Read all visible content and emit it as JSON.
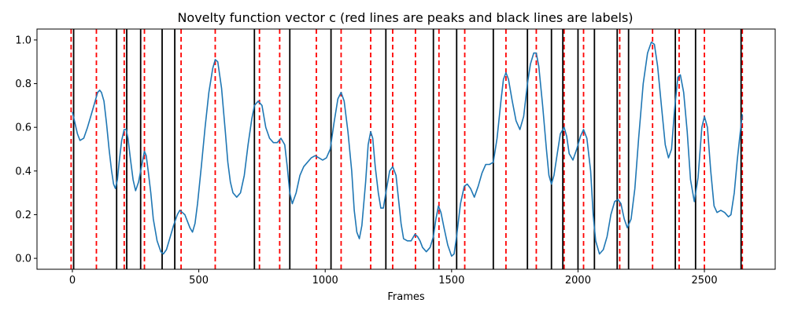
{
  "chart_data": {
    "type": "line",
    "title": "Novelty function vector c (red lines are peaks and black lines are labels)",
    "xlabel": "Frames",
    "ylabel": "",
    "xlim": [
      -140,
      2780
    ],
    "ylim": [
      -0.05,
      1.05
    ],
    "xticks": [
      0,
      500,
      1000,
      1500,
      2000,
      2500
    ],
    "yticks": [
      0.0,
      0.2,
      0.4,
      0.6,
      0.8,
      1.0
    ],
    "grid": false,
    "series": [
      {
        "color": "#1f77b4",
        "points": [
          [
            0,
            0.67
          ],
          [
            10,
            0.62
          ],
          [
            20,
            0.57
          ],
          [
            30,
            0.54
          ],
          [
            45,
            0.55
          ],
          [
            60,
            0.6
          ],
          [
            75,
            0.66
          ],
          [
            90,
            0.72
          ],
          [
            100,
            0.76
          ],
          [
            108,
            0.77
          ],
          [
            115,
            0.76
          ],
          [
            125,
            0.72
          ],
          [
            135,
            0.62
          ],
          [
            145,
            0.5
          ],
          [
            155,
            0.4
          ],
          [
            163,
            0.34
          ],
          [
            170,
            0.32
          ],
          [
            178,
            0.36
          ],
          [
            185,
            0.44
          ],
          [
            195,
            0.54
          ],
          [
            205,
            0.59
          ],
          [
            213,
            0.59
          ],
          [
            220,
            0.55
          ],
          [
            230,
            0.45
          ],
          [
            240,
            0.36
          ],
          [
            250,
            0.31
          ],
          [
            262,
            0.35
          ],
          [
            275,
            0.43
          ],
          [
            285,
            0.49
          ],
          [
            292,
            0.47
          ],
          [
            300,
            0.4
          ],
          [
            310,
            0.3
          ],
          [
            320,
            0.18
          ],
          [
            335,
            0.08
          ],
          [
            350,
            0.03
          ],
          [
            360,
            0.02
          ],
          [
            372,
            0.04
          ],
          [
            385,
            0.09
          ],
          [
            400,
            0.15
          ],
          [
            415,
            0.2
          ],
          [
            425,
            0.22
          ],
          [
            435,
            0.21
          ],
          [
            445,
            0.2
          ],
          [
            455,
            0.17
          ],
          [
            465,
            0.14
          ],
          [
            475,
            0.12
          ],
          [
            485,
            0.16
          ],
          [
            495,
            0.25
          ],
          [
            510,
            0.42
          ],
          [
            525,
            0.6
          ],
          [
            540,
            0.76
          ],
          [
            555,
            0.87
          ],
          [
            565,
            0.91
          ],
          [
            575,
            0.9
          ],
          [
            590,
            0.78
          ],
          [
            605,
            0.58
          ],
          [
            615,
            0.44
          ],
          [
            625,
            0.35
          ],
          [
            635,
            0.3
          ],
          [
            650,
            0.28
          ],
          [
            665,
            0.3
          ],
          [
            680,
            0.38
          ],
          [
            695,
            0.52
          ],
          [
            710,
            0.64
          ],
          [
            720,
            0.7
          ],
          [
            735,
            0.72
          ],
          [
            750,
            0.7
          ],
          [
            765,
            0.6
          ],
          [
            780,
            0.55
          ],
          [
            795,
            0.53
          ],
          [
            810,
            0.53
          ],
          [
            825,
            0.55
          ],
          [
            840,
            0.52
          ],
          [
            850,
            0.42
          ],
          [
            860,
            0.3
          ],
          [
            870,
            0.25
          ],
          [
            885,
            0.3
          ],
          [
            900,
            0.38
          ],
          [
            915,
            0.42
          ],
          [
            930,
            0.44
          ],
          [
            945,
            0.46
          ],
          [
            960,
            0.47
          ],
          [
            975,
            0.46
          ],
          [
            990,
            0.45
          ],
          [
            1005,
            0.46
          ],
          [
            1020,
            0.5
          ],
          [
            1035,
            0.62
          ],
          [
            1050,
            0.73
          ],
          [
            1063,
            0.76
          ],
          [
            1075,
            0.72
          ],
          [
            1090,
            0.58
          ],
          [
            1105,
            0.4
          ],
          [
            1115,
            0.22
          ],
          [
            1125,
            0.12
          ],
          [
            1135,
            0.09
          ],
          [
            1145,
            0.15
          ],
          [
            1160,
            0.35
          ],
          [
            1170,
            0.52
          ],
          [
            1180,
            0.58
          ],
          [
            1188,
            0.55
          ],
          [
            1198,
            0.42
          ],
          [
            1210,
            0.3
          ],
          [
            1220,
            0.23
          ],
          [
            1230,
            0.23
          ],
          [
            1240,
            0.3
          ],
          [
            1255,
            0.4
          ],
          [
            1267,
            0.42
          ],
          [
            1280,
            0.38
          ],
          [
            1290,
            0.27
          ],
          [
            1300,
            0.16
          ],
          [
            1310,
            0.09
          ],
          [
            1325,
            0.08
          ],
          [
            1340,
            0.08
          ],
          [
            1355,
            0.11
          ],
          [
            1365,
            0.1
          ],
          [
            1375,
            0.08
          ],
          [
            1385,
            0.05
          ],
          [
            1400,
            0.03
          ],
          [
            1415,
            0.05
          ],
          [
            1428,
            0.1
          ],
          [
            1438,
            0.18
          ],
          [
            1448,
            0.24
          ],
          [
            1458,
            0.21
          ],
          [
            1470,
            0.14
          ],
          [
            1485,
            0.06
          ],
          [
            1500,
            0.01
          ],
          [
            1510,
            0.02
          ],
          [
            1520,
            0.1
          ],
          [
            1535,
            0.25
          ],
          [
            1550,
            0.33
          ],
          [
            1562,
            0.34
          ],
          [
            1575,
            0.32
          ],
          [
            1590,
            0.28
          ],
          [
            1605,
            0.33
          ],
          [
            1620,
            0.39
          ],
          [
            1635,
            0.43
          ],
          [
            1650,
            0.43
          ],
          [
            1665,
            0.44
          ],
          [
            1680,
            0.55
          ],
          [
            1695,
            0.72
          ],
          [
            1705,
            0.82
          ],
          [
            1715,
            0.85
          ],
          [
            1725,
            0.82
          ],
          [
            1740,
            0.72
          ],
          [
            1755,
            0.63
          ],
          [
            1770,
            0.59
          ],
          [
            1785,
            0.65
          ],
          [
            1800,
            0.8
          ],
          [
            1812,
            0.89
          ],
          [
            1825,
            0.94
          ],
          [
            1835,
            0.94
          ],
          [
            1845,
            0.88
          ],
          [
            1860,
            0.7
          ],
          [
            1875,
            0.5
          ],
          [
            1885,
            0.38
          ],
          [
            1895,
            0.34
          ],
          [
            1905,
            0.38
          ],
          [
            1918,
            0.48
          ],
          [
            1930,
            0.57
          ],
          [
            1945,
            0.6
          ],
          [
            1955,
            0.56
          ],
          [
            1965,
            0.48
          ],
          [
            1980,
            0.45
          ],
          [
            1995,
            0.5
          ],
          [
            2010,
            0.56
          ],
          [
            2022,
            0.59
          ],
          [
            2035,
            0.55
          ],
          [
            2050,
            0.4
          ],
          [
            2060,
            0.2
          ],
          [
            2070,
            0.08
          ],
          [
            2085,
            0.02
          ],
          [
            2100,
            0.04
          ],
          [
            2115,
            0.1
          ],
          [
            2130,
            0.2
          ],
          [
            2145,
            0.26
          ],
          [
            2158,
            0.27
          ],
          [
            2170,
            0.25
          ],
          [
            2183,
            0.18
          ],
          [
            2195,
            0.14
          ],
          [
            2210,
            0.18
          ],
          [
            2225,
            0.32
          ],
          [
            2240,
            0.55
          ],
          [
            2258,
            0.8
          ],
          [
            2275,
            0.94
          ],
          [
            2290,
            0.99
          ],
          [
            2302,
            0.98
          ],
          [
            2315,
            0.88
          ],
          [
            2330,
            0.7
          ],
          [
            2345,
            0.52
          ],
          [
            2358,
            0.46
          ],
          [
            2370,
            0.5
          ],
          [
            2382,
            0.68
          ],
          [
            2395,
            0.83
          ],
          [
            2405,
            0.84
          ],
          [
            2418,
            0.76
          ],
          [
            2432,
            0.58
          ],
          [
            2445,
            0.36
          ],
          [
            2460,
            0.26
          ],
          [
            2475,
            0.37
          ],
          [
            2490,
            0.6
          ],
          [
            2500,
            0.65
          ],
          [
            2512,
            0.6
          ],
          [
            2525,
            0.4
          ],
          [
            2538,
            0.24
          ],
          [
            2550,
            0.21
          ],
          [
            2565,
            0.22
          ],
          [
            2580,
            0.21
          ],
          [
            2595,
            0.19
          ],
          [
            2605,
            0.2
          ],
          [
            2618,
            0.3
          ],
          [
            2630,
            0.45
          ],
          [
            2642,
            0.58
          ],
          [
            2650,
            0.66
          ]
        ]
      }
    ],
    "peaks": {
      "color": "#ff0000",
      "style": "dashed",
      "x": [
        -5,
        95,
        205,
        285,
        430,
        565,
        740,
        820,
        965,
        1063,
        1180,
        1267,
        1357,
        1450,
        1552,
        1715,
        1835,
        1945,
        2022,
        2165,
        2295,
        2400,
        2500,
        2650
      ]
    },
    "labels": {
      "color": "#000000",
      "style": "solid",
      "x": [
        5,
        175,
        215,
        270,
        355,
        405,
        720,
        860,
        1023,
        1240,
        1428,
        1520,
        1665,
        1800,
        1895,
        1940,
        2000,
        2065,
        2155,
        2200,
        2385,
        2465,
        2645
      ]
    }
  }
}
